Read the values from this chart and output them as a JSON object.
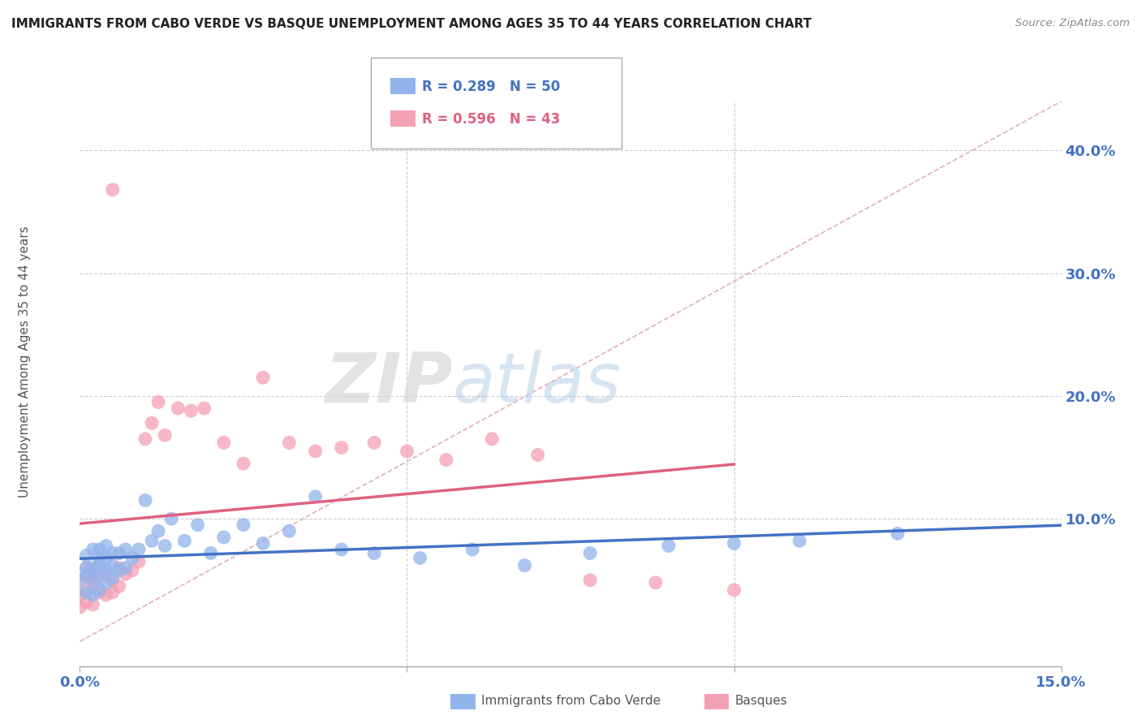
{
  "title": "IMMIGRANTS FROM CABO VERDE VS BASQUE UNEMPLOYMENT AMONG AGES 35 TO 44 YEARS CORRELATION CHART",
  "source": "Source: ZipAtlas.com",
  "ylabel": "Unemployment Among Ages 35 to 44 years",
  "xlim": [
    0.0,
    0.15
  ],
  "ylim": [
    -0.02,
    0.44
  ],
  "xticks": [
    0.0,
    0.05,
    0.1,
    0.15
  ],
  "xtick_labels": [
    "0.0%",
    "",
    "",
    "15.0%"
  ],
  "yticks": [
    0.1,
    0.2,
    0.3,
    0.4
  ],
  "ytick_labels": [
    "10.0%",
    "20.0%",
    "30.0%",
    "40.0%"
  ],
  "blue_color": "#92b4ec",
  "pink_color": "#f4a0b5",
  "blue_line_color": "#4472c4",
  "pink_line_color": "#e06080",
  "diagonal_color": "#e0b0b8",
  "watermark_zip": "ZIP",
  "watermark_atlas": "atlas",
  "blue_scatter_x": [
    0.0,
    0.001,
    0.001,
    0.001,
    0.001,
    0.002,
    0.002,
    0.002,
    0.002,
    0.003,
    0.003,
    0.003,
    0.003,
    0.003,
    0.004,
    0.004,
    0.004,
    0.004,
    0.005,
    0.005,
    0.005,
    0.006,
    0.006,
    0.007,
    0.007,
    0.008,
    0.009,
    0.01,
    0.011,
    0.012,
    0.013,
    0.014,
    0.016,
    0.018,
    0.02,
    0.022,
    0.025,
    0.028,
    0.032,
    0.036,
    0.04,
    0.045,
    0.052,
    0.06,
    0.068,
    0.078,
    0.09,
    0.1,
    0.11,
    0.125
  ],
  "blue_scatter_y": [
    0.05,
    0.04,
    0.055,
    0.06,
    0.07,
    0.038,
    0.05,
    0.06,
    0.075,
    0.042,
    0.055,
    0.062,
    0.068,
    0.075,
    0.048,
    0.058,
    0.068,
    0.078,
    0.052,
    0.062,
    0.072,
    0.058,
    0.072,
    0.06,
    0.075,
    0.068,
    0.075,
    0.115,
    0.082,
    0.09,
    0.078,
    0.1,
    0.082,
    0.095,
    0.072,
    0.085,
    0.095,
    0.08,
    0.09,
    0.118,
    0.075,
    0.072,
    0.068,
    0.075,
    0.062,
    0.072,
    0.078,
    0.08,
    0.082,
    0.088
  ],
  "pink_scatter_x": [
    0.0,
    0.0,
    0.001,
    0.001,
    0.001,
    0.001,
    0.002,
    0.002,
    0.002,
    0.003,
    0.003,
    0.003,
    0.004,
    0.004,
    0.005,
    0.005,
    0.005,
    0.006,
    0.006,
    0.007,
    0.008,
    0.009,
    0.01,
    0.011,
    0.012,
    0.013,
    0.015,
    0.017,
    0.019,
    0.022,
    0.025,
    0.028,
    0.032,
    0.036,
    0.04,
    0.045,
    0.05,
    0.056,
    0.063,
    0.07,
    0.078,
    0.088,
    0.1
  ],
  "pink_scatter_y": [
    0.038,
    0.028,
    0.032,
    0.042,
    0.052,
    0.06,
    0.03,
    0.048,
    0.058,
    0.04,
    0.052,
    0.062,
    0.038,
    0.055,
    0.04,
    0.05,
    0.368,
    0.06,
    0.045,
    0.055,
    0.058,
    0.065,
    0.165,
    0.178,
    0.195,
    0.168,
    0.19,
    0.188,
    0.19,
    0.162,
    0.145,
    0.215,
    0.162,
    0.155,
    0.158,
    0.162,
    0.155,
    0.148,
    0.165,
    0.152,
    0.05,
    0.048,
    0.042
  ]
}
